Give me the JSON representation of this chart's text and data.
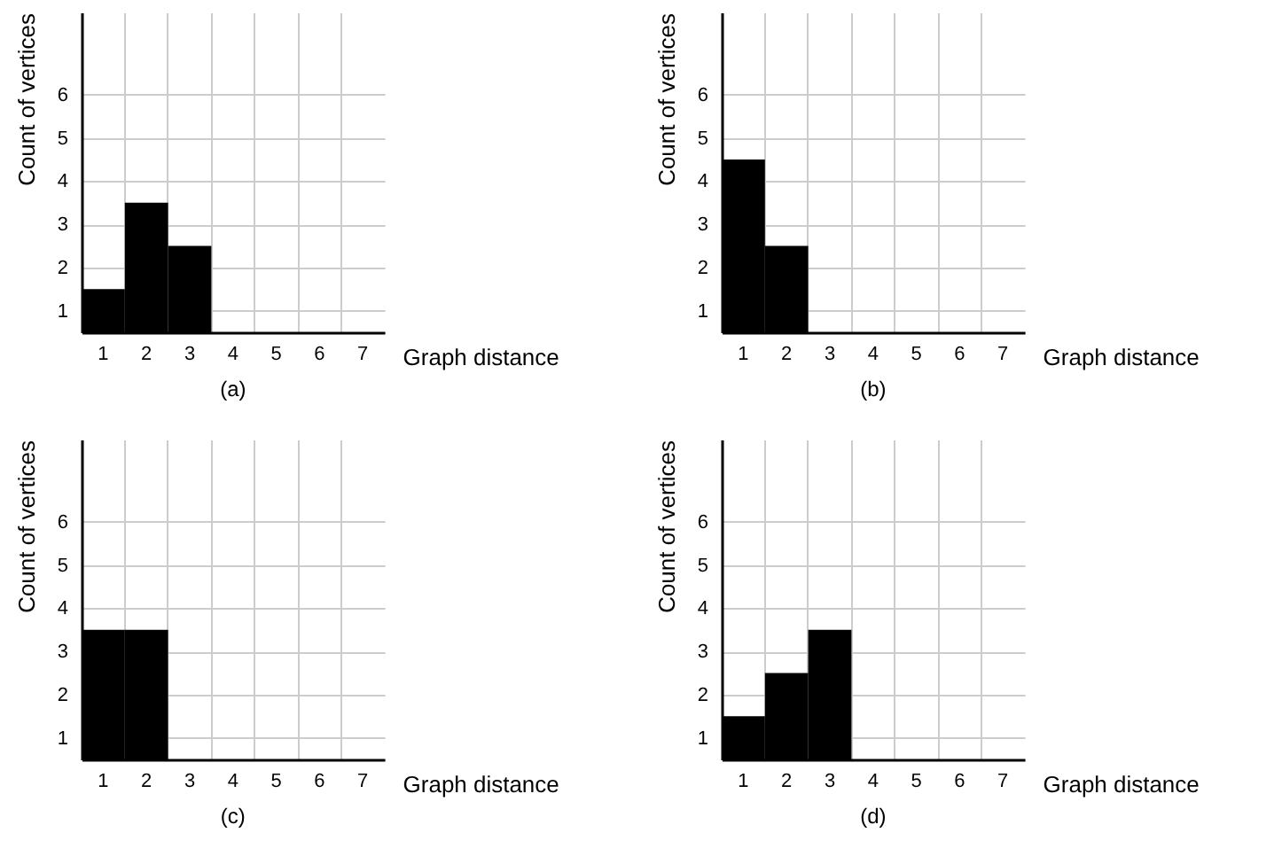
{
  "chart_data": [
    {
      "type": "bar",
      "title": "(a)",
      "xlabel": "Graph distance",
      "ylabel": "Count of vertices",
      "categories": [
        "1",
        "2",
        "3",
        "4",
        "5",
        "6",
        "7"
      ],
      "values": [
        1,
        3,
        2,
        null,
        null,
        null,
        null
      ],
      "base": [
        0.5,
        0.5,
        0.5,
        null,
        null,
        null,
        null
      ],
      "color": "#000000",
      "ylim": [
        0.5,
        7.9
      ],
      "yticks": [
        1,
        2,
        3,
        4,
        5,
        6
      ],
      "grid": true
    },
    {
      "type": "bar",
      "title": "(b)",
      "xlabel": "Graph distance",
      "ylabel": "Count of vertices",
      "categories": [
        "1",
        "2",
        "3",
        "4",
        "5",
        "6",
        "7"
      ],
      "values": [
        4,
        2,
        null,
        null,
        null,
        null,
        null
      ],
      "base": [
        0.5,
        0.5,
        null,
        null,
        null,
        null,
        null
      ],
      "color": "#000000",
      "ylim": [
        0.5,
        7.9
      ],
      "yticks": [
        1,
        2,
        3,
        4,
        5,
        6
      ],
      "grid": true
    },
    {
      "type": "bar",
      "title": "(c)",
      "xlabel": "Graph distance",
      "ylabel": "Count of vertices",
      "categories": [
        "1",
        "2",
        "3",
        "4",
        "5",
        "6",
        "7"
      ],
      "values": [
        3,
        3,
        null,
        null,
        null,
        null,
        null
      ],
      "base": [
        0.5,
        0.5,
        null,
        null,
        null,
        null,
        null
      ],
      "color": "#000000",
      "ylim": [
        0.5,
        7.9
      ],
      "yticks": [
        1,
        2,
        3,
        4,
        5,
        6
      ],
      "grid": true
    },
    {
      "type": "bar",
      "title": "(d)",
      "xlabel": "Graph distance",
      "ylabel": "Count of vertices",
      "categories": [
        "1",
        "2",
        "3",
        "4",
        "5",
        "6",
        "7"
      ],
      "values": [
        1,
        2,
        3,
        null,
        null,
        null,
        null
      ],
      "base": [
        0.5,
        0.5,
        0.5,
        null,
        null,
        null,
        null
      ],
      "color": "#000000",
      "ylim": [
        0.5,
        7.9
      ],
      "yticks": [
        1,
        2,
        3,
        4,
        5,
        6
      ],
      "grid": true
    }
  ]
}
